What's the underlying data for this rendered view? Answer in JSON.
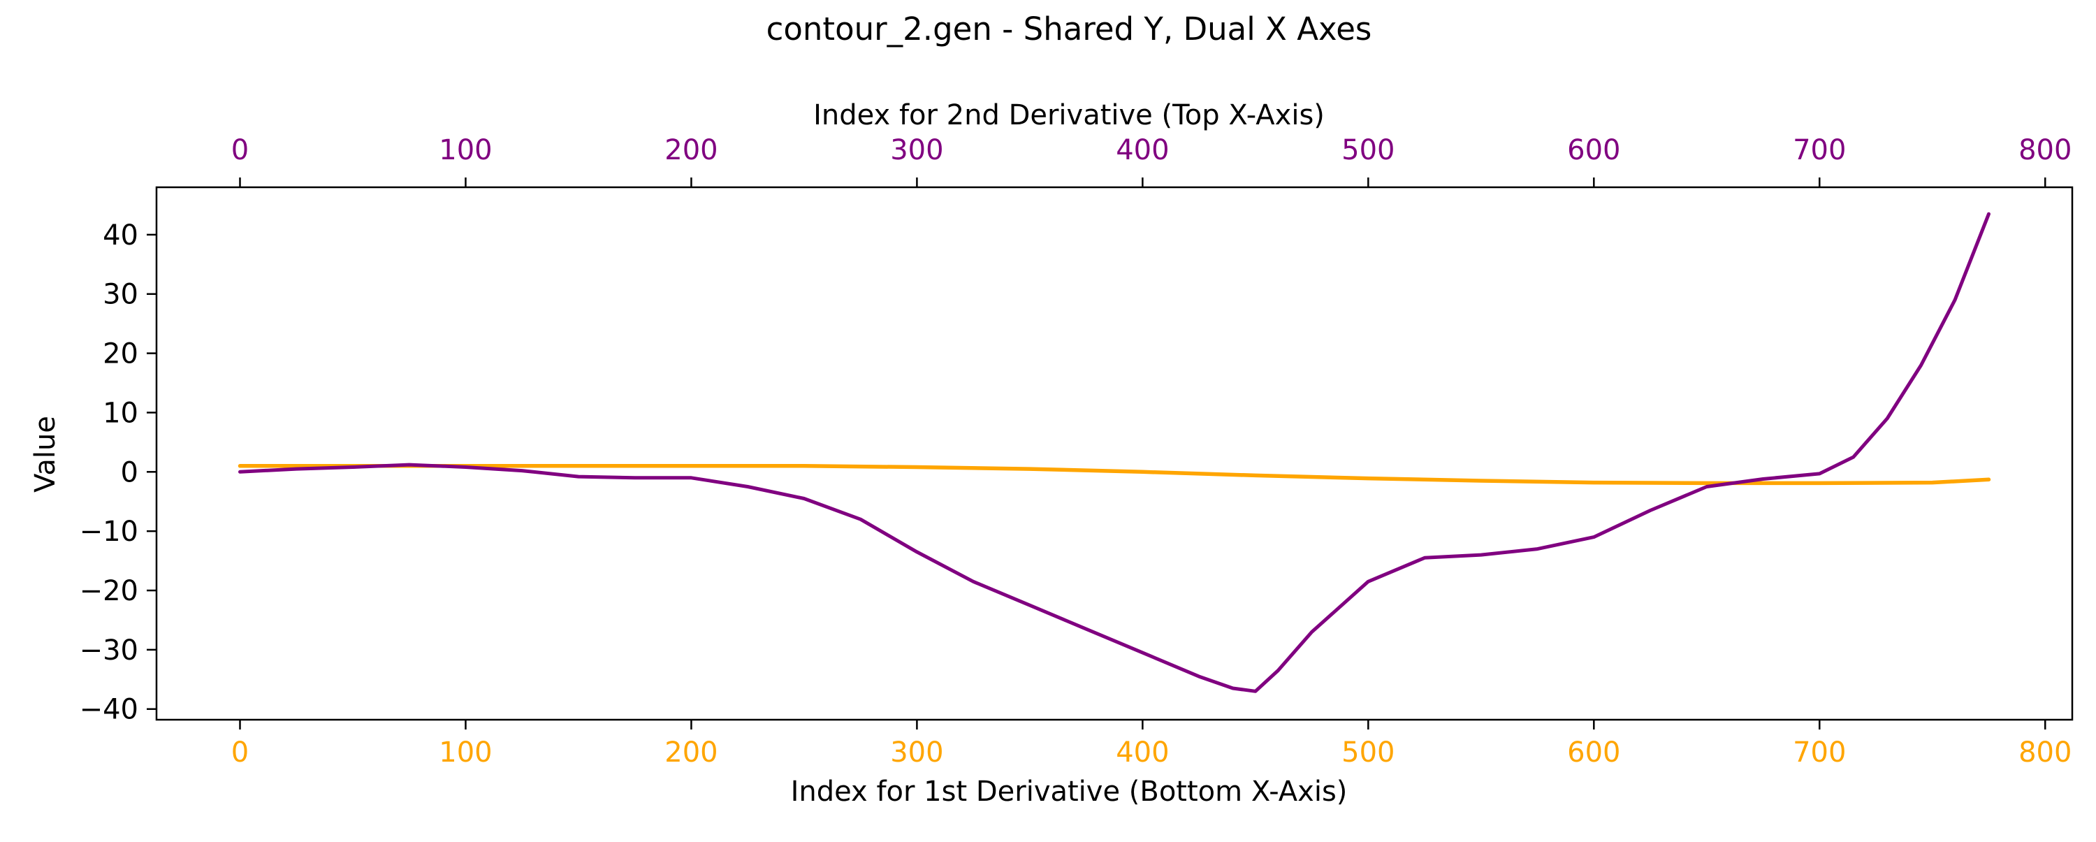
{
  "chart_data": {
    "type": "line",
    "title": "contour_2.gen - Shared Y, Dual X Axes",
    "xlabel_bottom": "Index for 1st Derivative (Bottom X-Axis)",
    "xlabel_top": "Index for 2nd Derivative (Top X-Axis)",
    "ylabel": "Value",
    "xlim": [
      -37,
      812
    ],
    "ylim": [
      -41.8,
      48
    ],
    "x_ticks": [
      "0",
      "100",
      "200",
      "300",
      "400",
      "500",
      "600",
      "700",
      "800"
    ],
    "y_ticks": [
      "−40",
      "−30",
      "−20",
      "−10",
      "0",
      "10",
      "20",
      "30",
      "40"
    ],
    "grid": false,
    "bottom_axis_color": "#ffa500",
    "top_axis_color": "#800080",
    "series": [
      {
        "axis": "bottom",
        "color": "#ffa500",
        "x": [
          0,
          50,
          100,
          150,
          200,
          250,
          300,
          350,
          400,
          450,
          500,
          550,
          600,
          650,
          700,
          750,
          775
        ],
        "values": [
          1.0,
          1.0,
          1.0,
          1.0,
          1.0,
          1.0,
          0.8,
          0.5,
          0.0,
          -0.6,
          -1.1,
          -1.5,
          -1.8,
          -1.9,
          -1.9,
          -1.8,
          -1.3
        ]
      },
      {
        "axis": "top",
        "color": "#800080",
        "x": [
          0,
          25,
          50,
          75,
          100,
          125,
          150,
          175,
          200,
          225,
          250,
          275,
          300,
          325,
          350,
          375,
          400,
          425,
          440,
          450,
          460,
          475,
          500,
          525,
          550,
          575,
          600,
          625,
          650,
          675,
          700,
          715,
          730,
          745,
          760,
          775
        ],
        "values": [
          0.0,
          0.5,
          0.8,
          1.2,
          0.8,
          0.2,
          -0.8,
          -1.0,
          -1.0,
          -2.5,
          -4.5,
          -8.0,
          -13.5,
          -18.5,
          -22.5,
          -26.5,
          -30.5,
          -34.5,
          -36.5,
          -37.0,
          -33.5,
          -27.0,
          -18.5,
          -14.5,
          -14.0,
          -13.0,
          -11.0,
          -6.5,
          -2.5,
          -1.2,
          -0.3,
          2.5,
          9.0,
          18.0,
          29.0,
          43.5
        ]
      }
    ]
  }
}
